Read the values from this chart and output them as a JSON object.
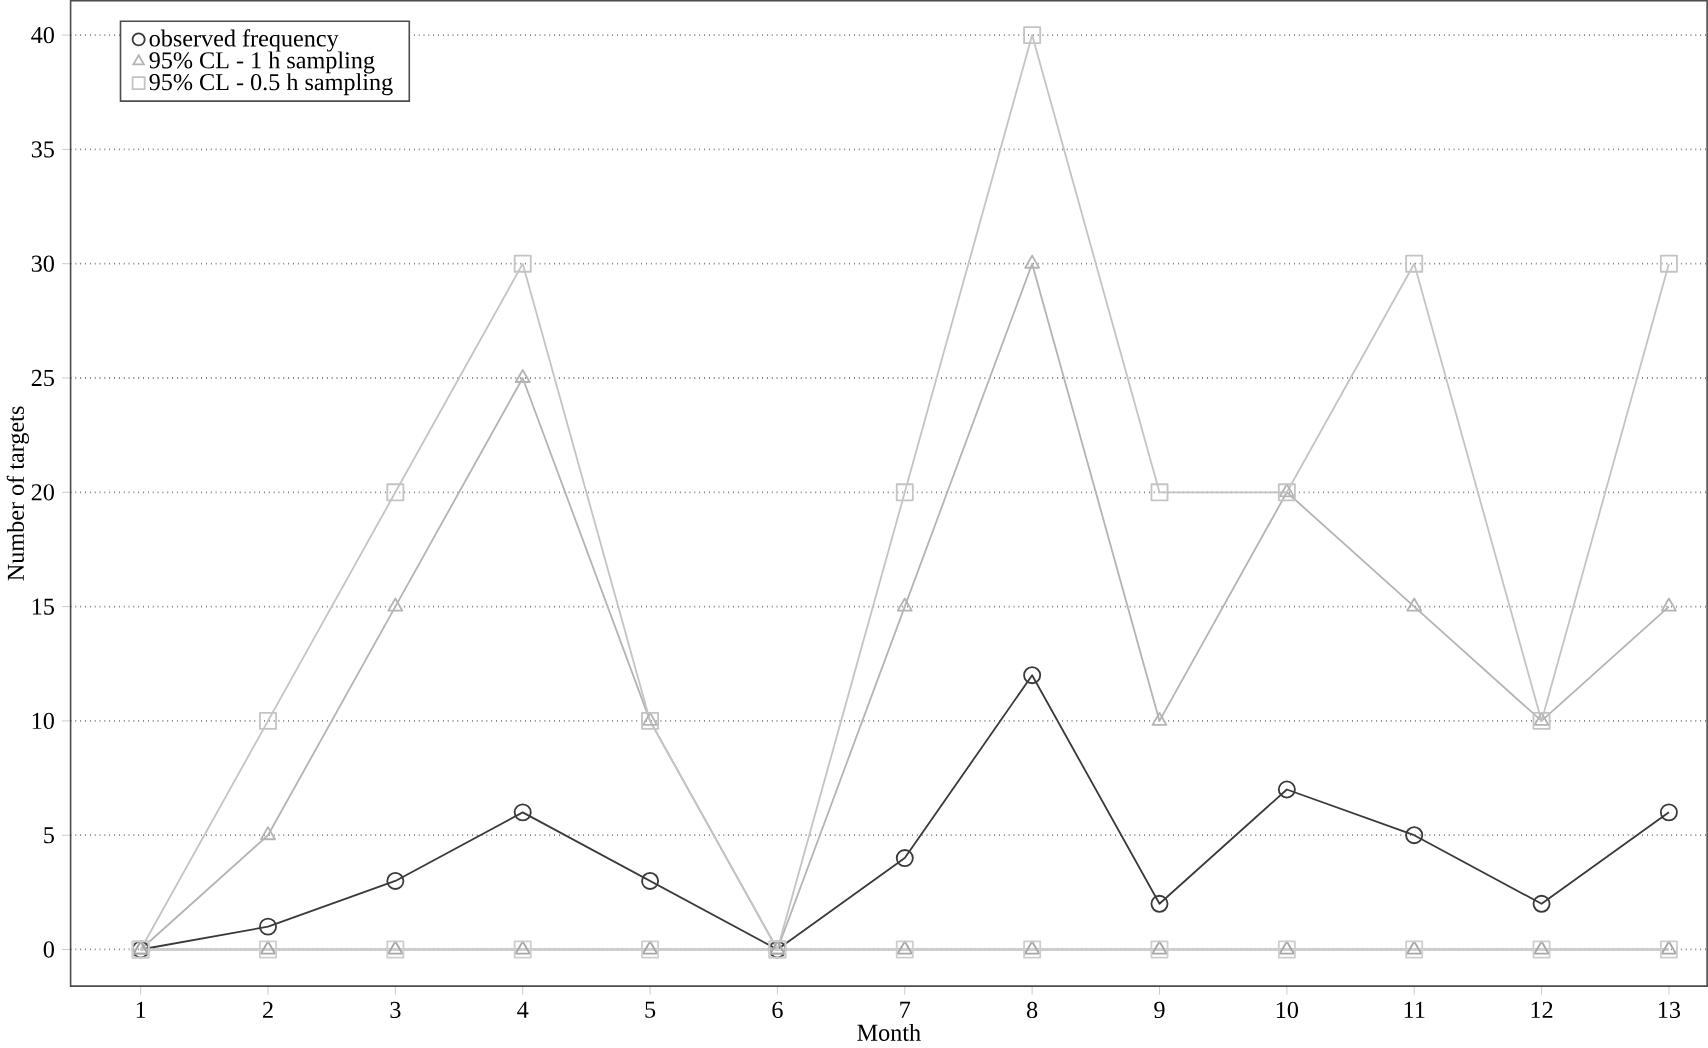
{
  "chart_data": {
    "type": "line",
    "xlabel": "Month",
    "ylabel": "Number of targets",
    "categories": [
      "1",
      "2",
      "3",
      "4",
      "5",
      "6",
      "7",
      "8",
      "9",
      "10",
      "11",
      "12",
      "13"
    ],
    "series": [
      {
        "name": "observed frequency",
        "color": "#3a3a3a",
        "marker": "circle",
        "values": [
          0,
          1,
          3,
          6,
          3,
          0,
          4,
          12,
          2,
          7,
          5,
          2,
          6
        ]
      },
      {
        "name": "95% CL - 1 h sampling",
        "color": "#b4b4b4",
        "marker": "triangle",
        "values": [
          0,
          5,
          15,
          25,
          10,
          0,
          15,
          30,
          10,
          20,
          15,
          10,
          15
        ]
      },
      {
        "color": "#a6a6a6",
        "marker": "triangle",
        "values": [
          0,
          0,
          0,
          0,
          0,
          0,
          0,
          0,
          0,
          0,
          0,
          0,
          0
        ]
      },
      {
        "name": "95% CL - 0.5 h sampling",
        "color": "#c4c4c4",
        "marker": "square",
        "values": [
          0,
          10,
          20,
          30,
          10,
          0,
          20,
          40,
          20,
          20,
          30,
          10,
          30
        ]
      },
      {
        "color": "#cecece",
        "marker": "square",
        "values": [
          0,
          0,
          0,
          0,
          0,
          0,
          0,
          0,
          0,
          0,
          0,
          0,
          0
        ]
      }
    ],
    "ylim": [
      -1.6,
      41.5
    ],
    "yticks": [
      0,
      5,
      10,
      15,
      20,
      25,
      30,
      35,
      40
    ],
    "grid": "y",
    "legend": "top left"
  }
}
